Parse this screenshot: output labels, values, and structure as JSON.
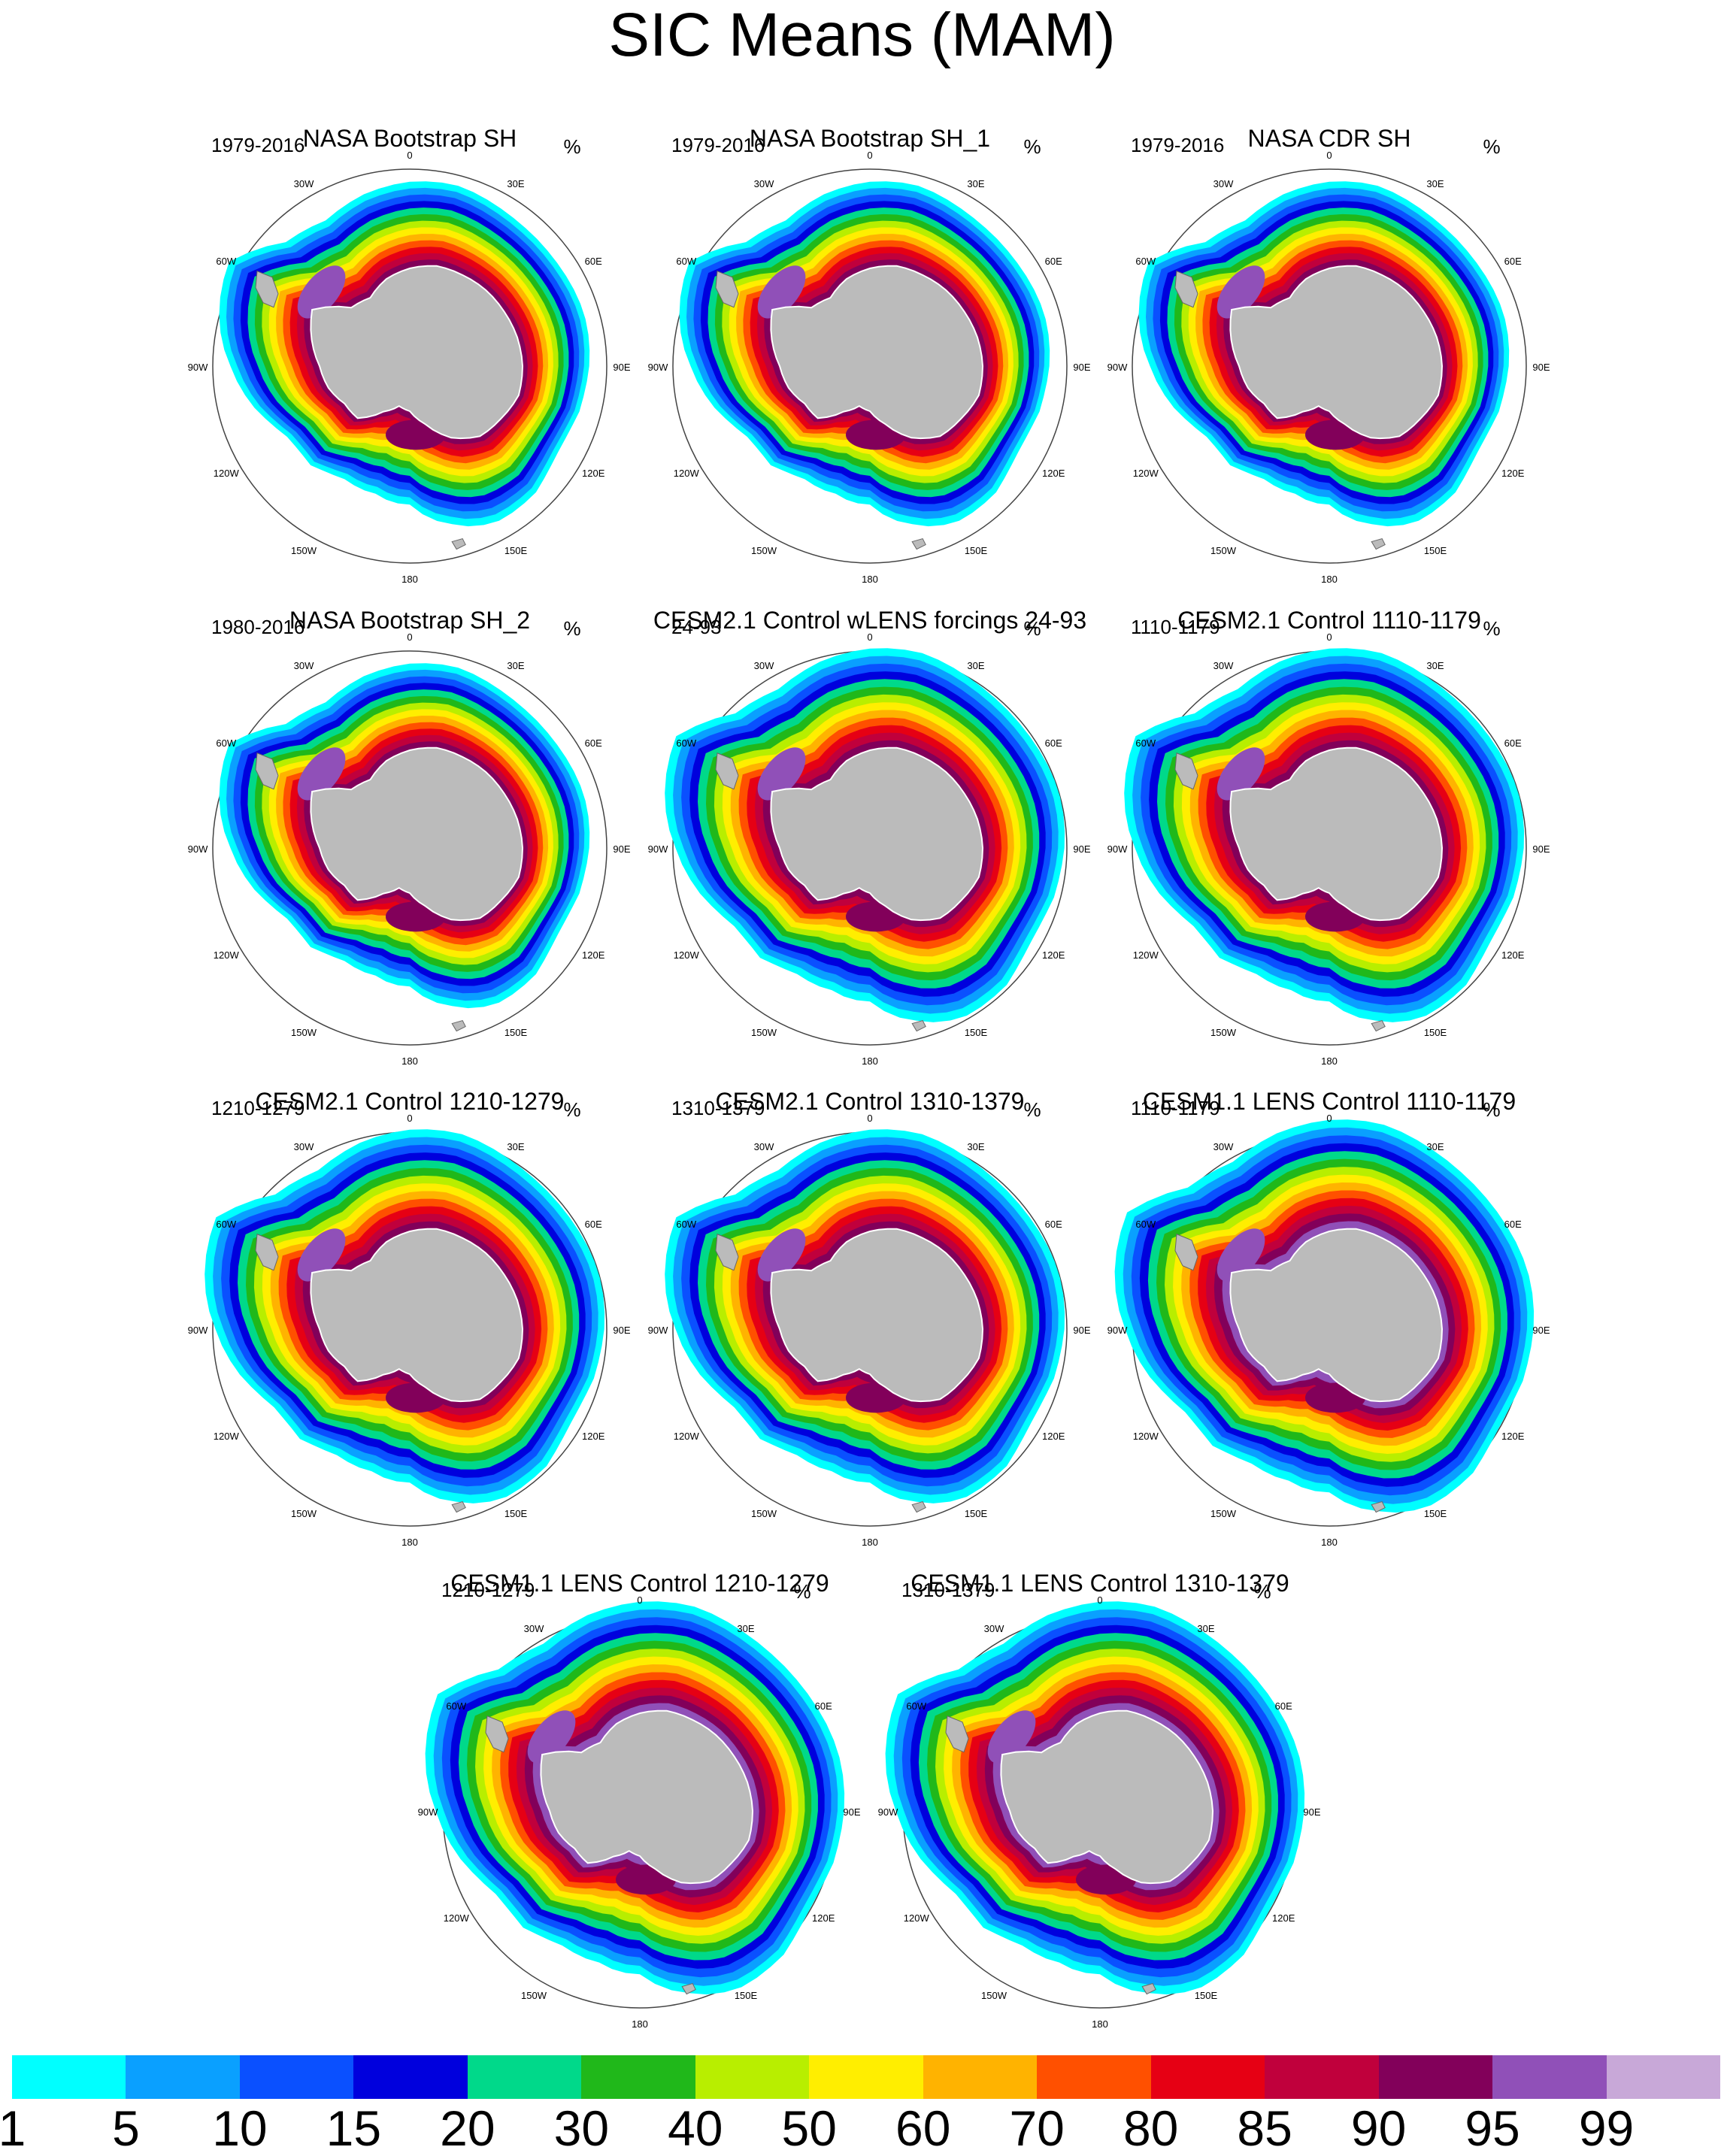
{
  "title": "SIC Means (MAM)",
  "units": "%",
  "lon_labels": [
    "0",
    "30E",
    "60E",
    "90E",
    "120E",
    "150E",
    "180",
    "150W",
    "120W",
    "90W",
    "60W",
    "30W"
  ],
  "panels": [
    {
      "title": "NASA Bootstrap SH",
      "period": "1979-2016",
      "style": "obs"
    },
    {
      "title": "NASA Bootstrap SH_1",
      "period": "1979-2016",
      "style": "obs"
    },
    {
      "title": "NASA CDR SH",
      "period": "1979-2016",
      "style": "obs"
    },
    {
      "title": "NASA Bootstrap SH_2",
      "period": "1980-2016",
      "style": "obs"
    },
    {
      "title": "CESM2.1 Control wLENS forcings 24-93",
      "period": "24-93",
      "style": "cesm2"
    },
    {
      "title": "CESM2.1 Control 1110-1179",
      "period": "1110-1179",
      "style": "cesm2"
    },
    {
      "title": "CESM2.1 Control 1210-1279",
      "period": "1210-1279",
      "style": "cesm2"
    },
    {
      "title": "CESM2.1 Control 1310-1379",
      "period": "1310-1379",
      "style": "cesm2"
    },
    {
      "title": "CESM1.1 LENS Control 1110-1179",
      "period": "1110-1179",
      "style": "cesm1"
    },
    {
      "title": "CESM1.1 LENS Control 1210-1279",
      "period": "1210-1279",
      "style": "cesm1"
    },
    {
      "title": "CESM1.1 LENS Control 1310-1379",
      "period": "1310-1379",
      "style": "cesm1"
    }
  ],
  "colorbar": {
    "labels": [
      "1",
      "5",
      "10",
      "15",
      "20",
      "30",
      "40",
      "50",
      "60",
      "70",
      "80",
      "85",
      "90",
      "95",
      "99"
    ],
    "colors": [
      "#00ffff",
      "#0aa0ff",
      "#0a50ff",
      "#0000dd",
      "#00d98a",
      "#20b81a",
      "#b8ee00",
      "#ffee00",
      "#ffb300",
      "#ff5000",
      "#e60014",
      "#c0003c",
      "#82005a",
      "#9050b8",
      "#c8a8d8"
    ]
  }
}
